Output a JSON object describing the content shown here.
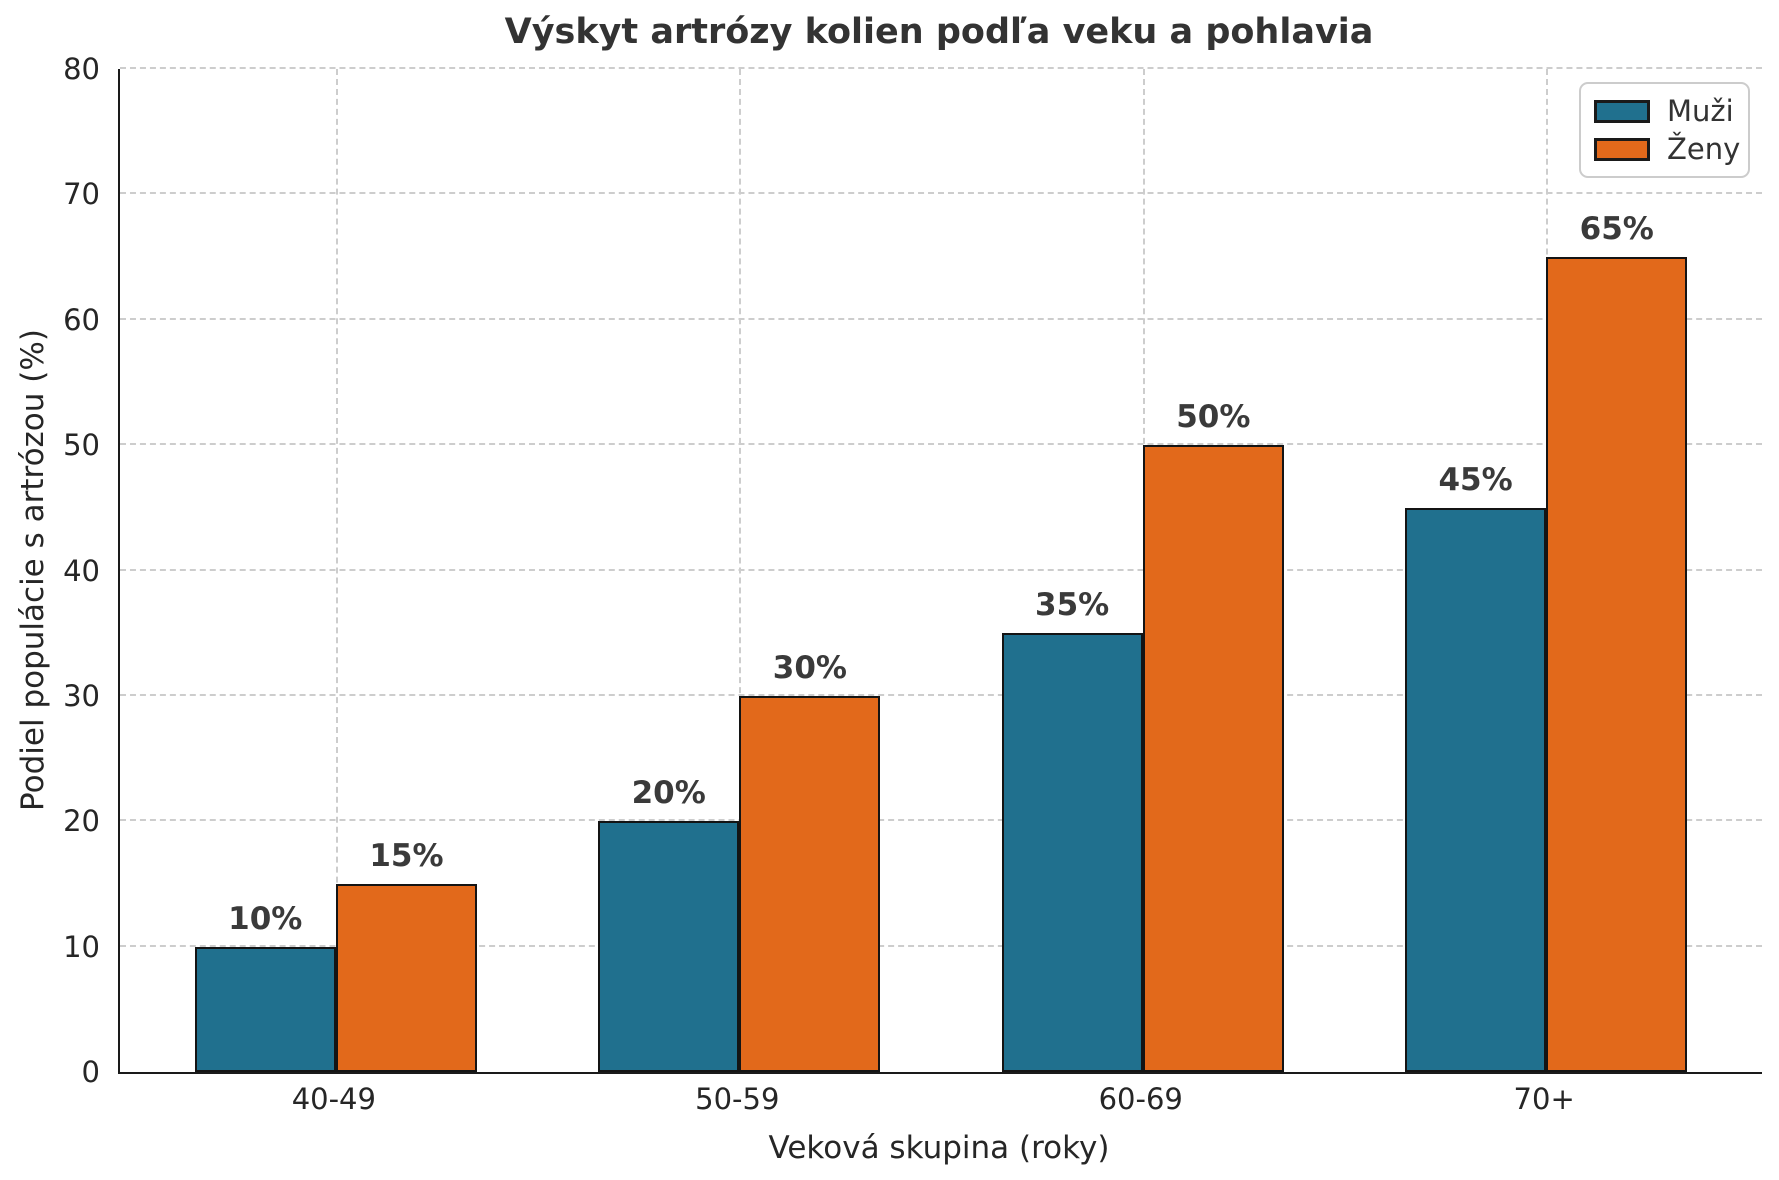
{
  "chart_data": {
    "type": "bar",
    "title": "Výskyt artrózy kolien podľa veku a pohlavia",
    "xlabel": "Veková skupina (roky)",
    "ylabel": "Podiel populácie s artrózou (%)",
    "categories": [
      "40-49",
      "50-59",
      "60-69",
      "70+"
    ],
    "series": [
      {
        "name": "Muži",
        "color": "#20708E",
        "values": [
          10,
          20,
          35,
          45
        ],
        "labels": [
          "10%",
          "20%",
          "35%",
          "45%"
        ]
      },
      {
        "name": "Ženy",
        "color": "#E2691B",
        "values": [
          15,
          30,
          50,
          65
        ],
        "labels": [
          "15%",
          "30%",
          "50%",
          "65%"
        ]
      }
    ],
    "ylim": [
      0,
      80
    ],
    "yticks": [
      0,
      10,
      20,
      30,
      40,
      50,
      60,
      70,
      80
    ],
    "ytick_labels": [
      "0",
      "10",
      "20",
      "30",
      "40",
      "50",
      "60",
      "70",
      "80"
    ],
    "grid": "dashed",
    "legend_position": "upper right",
    "colors": {
      "grid": "#cdcdcd",
      "spine": "#1a1a1a",
      "bar_edge": "#141414",
      "text": "#262626",
      "title_text": "#333333",
      "value_label_text": "#3a3a3a",
      "background": "#ffffff"
    }
  }
}
